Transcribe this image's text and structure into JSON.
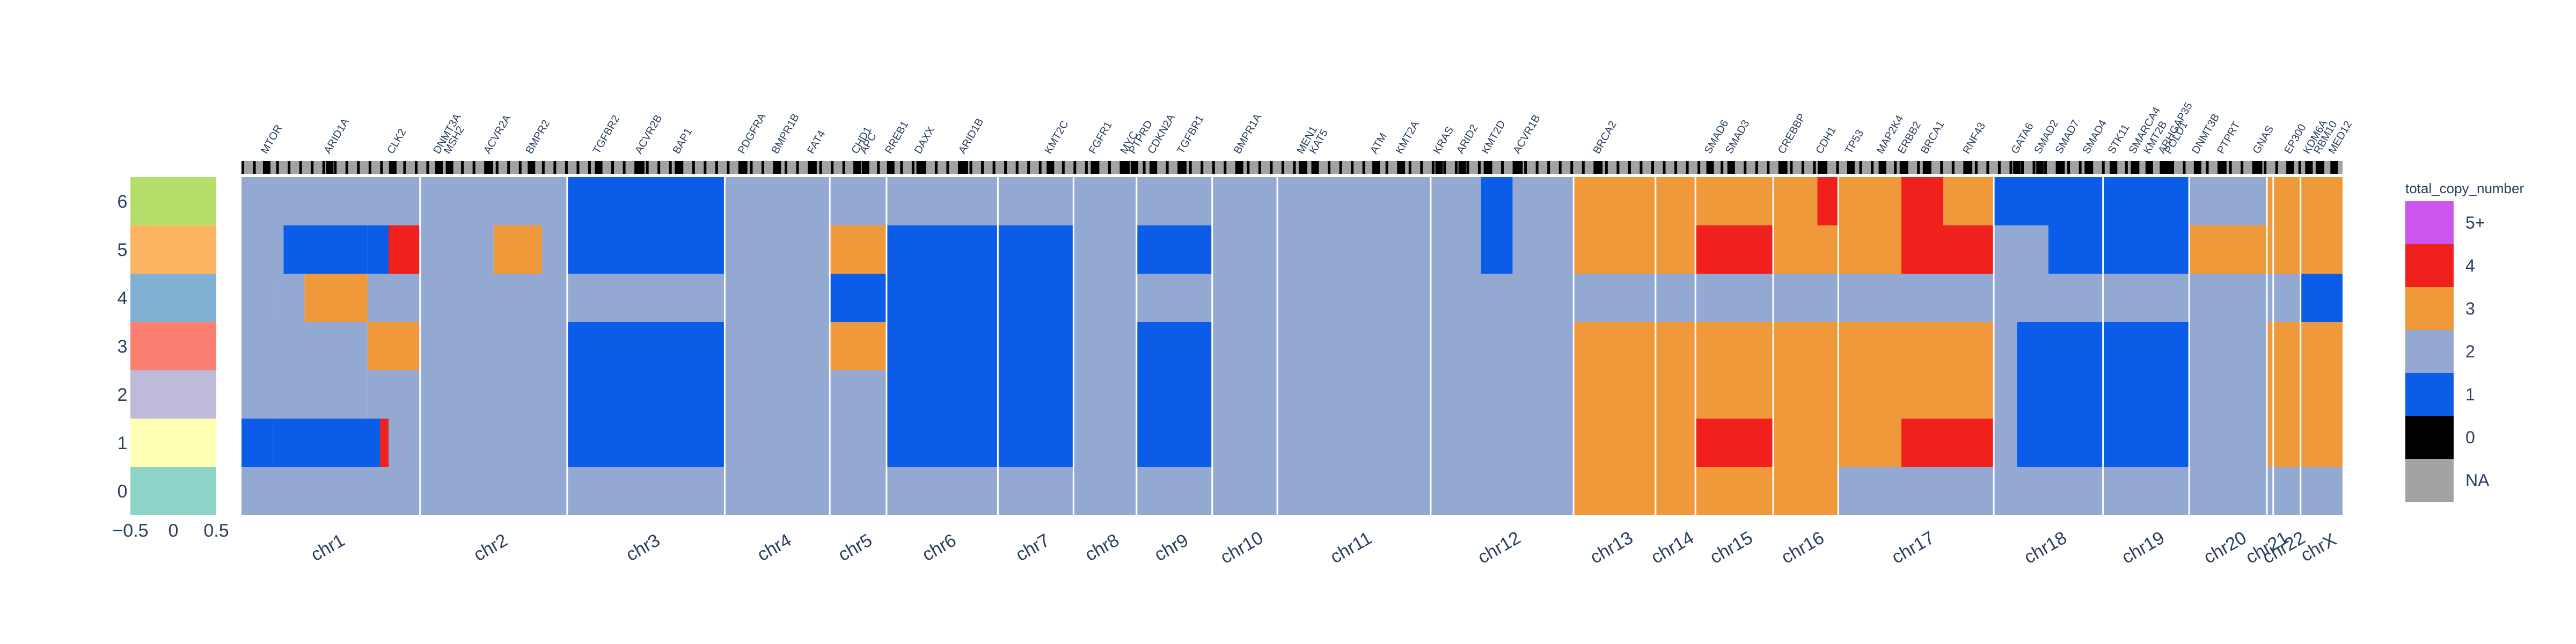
{
  "chart_data": {
    "type": "heatmap",
    "legend_title": "total_copy_number",
    "legend": [
      {
        "label": "5+",
        "color": "#cc55ee"
      },
      {
        "label": "4",
        "color": "#f0201c"
      },
      {
        "label": "3",
        "color": "#f0993a"
      },
      {
        "label": "2",
        "color": "#94a9d2"
      },
      {
        "label": "1",
        "color": "#0b5de9"
      },
      {
        "label": "0",
        "color": "#000000"
      },
      {
        "label": "NA",
        "color": "#a3a3a3"
      }
    ],
    "row_labels": [
      "6",
      "5",
      "4",
      "3",
      "2",
      "1",
      "0"
    ],
    "cluster_colors": [
      "#b5df6a",
      "#fdb462",
      "#80b1d3",
      "#fb8072",
      "#bebada",
      "#ffffb3",
      "#8dd3c7"
    ],
    "cluster_axis": {
      "ticks": [
        "−0.5",
        "0",
        "0.5"
      ],
      "range": [
        -0.5,
        0.5
      ]
    },
    "chromosomes": [
      {
        "name": "chr1",
        "start": 0,
        "end": 8.5
      },
      {
        "name": "chr2",
        "start": 8.5,
        "end": 15.5
      },
      {
        "name": "chr3",
        "start": 15.5,
        "end": 23
      },
      {
        "name": "chr4",
        "start": 23,
        "end": 28
      },
      {
        "name": "chr5",
        "start": 28,
        "end": 30.7
      },
      {
        "name": "chr6",
        "start": 30.7,
        "end": 36
      },
      {
        "name": "chr7",
        "start": 36,
        "end": 39.6
      },
      {
        "name": "chr8",
        "start": 39.6,
        "end": 42.6
      },
      {
        "name": "chr9",
        "start": 42.6,
        "end": 46.2
      },
      {
        "name": "chr10",
        "start": 46.2,
        "end": 49.3
      },
      {
        "name": "chr11",
        "start": 49.3,
        "end": 56.6
      },
      {
        "name": "chr12",
        "start": 56.6,
        "end": 63.4
      },
      {
        "name": "chr13",
        "start": 63.4,
        "end": 67.3
      },
      {
        "name": "chr14",
        "start": 67.3,
        "end": 69.2
      },
      {
        "name": "chr15",
        "start": 69.2,
        "end": 72.9
      },
      {
        "name": "chr16",
        "start": 72.9,
        "end": 76
      },
      {
        "name": "chr17",
        "start": 76,
        "end": 83.4
      },
      {
        "name": "chr18",
        "start": 83.4,
        "end": 88.6
      },
      {
        "name": "chr19",
        "start": 88.6,
        "end": 92.7
      },
      {
        "name": "chr20",
        "start": 92.7,
        "end": 96.4
      },
      {
        "name": "chr21",
        "start": 96.4,
        "end": 96.7
      },
      {
        "name": "chr22",
        "start": 96.7,
        "end": 98
      },
      {
        "name": "chrX",
        "start": 98,
        "end": 100
      }
    ],
    "genes": [
      {
        "name": "MTOR",
        "pos": 1.2
      },
      {
        "name": "ARID1A",
        "pos": 4.2
      },
      {
        "name": "CLK2",
        "pos": 7.2
      },
      {
        "name": "DNMT3A",
        "pos": 9.4
      },
      {
        "name": "MSH2",
        "pos": 9.9
      },
      {
        "name": "ACVR2A",
        "pos": 11.8
      },
      {
        "name": "BMPR2",
        "pos": 13.8
      },
      {
        "name": "TGFBR2",
        "pos": 17.0
      },
      {
        "name": "ACVR2B",
        "pos": 19.0
      },
      {
        "name": "BAP1",
        "pos": 20.8
      },
      {
        "name": "PDGFRA",
        "pos": 23.9
      },
      {
        "name": "BMPR1B",
        "pos": 25.5
      },
      {
        "name": "FAT4",
        "pos": 27.2
      },
      {
        "name": "CHD1",
        "pos": 29.3
      },
      {
        "name": "APC",
        "pos": 29.7
      },
      {
        "name": "RREB1",
        "pos": 30.9
      },
      {
        "name": "DAXX",
        "pos": 32.3
      },
      {
        "name": "ARID1B",
        "pos": 34.4
      },
      {
        "name": "KMT2C",
        "pos": 38.5
      },
      {
        "name": "FGFR1",
        "pos": 40.6
      },
      {
        "name": "MYC",
        "pos": 42.1
      },
      {
        "name": "PTPRD",
        "pos": 42.5
      },
      {
        "name": "CDKN2A",
        "pos": 43.4
      },
      {
        "name": "TGFBR1",
        "pos": 44.8
      },
      {
        "name": "BMPR1A",
        "pos": 47.5
      },
      {
        "name": "MEN1",
        "pos": 50.5
      },
      {
        "name": "KAT5",
        "pos": 51.1
      },
      {
        "name": "ATM",
        "pos": 54.0
      },
      {
        "name": "KMT2A",
        "pos": 55.2
      },
      {
        "name": "KRAS",
        "pos": 57.0
      },
      {
        "name": "ARID2",
        "pos": 58.1
      },
      {
        "name": "KMT2D",
        "pos": 59.3
      },
      {
        "name": "ACVR1B",
        "pos": 60.8
      },
      {
        "name": "BRCA2",
        "pos": 64.6
      },
      {
        "name": "SMAD6",
        "pos": 69.9
      },
      {
        "name": "SMAD3",
        "pos": 70.9
      },
      {
        "name": "CREBBP",
        "pos": 73.4
      },
      {
        "name": "CDH1",
        "pos": 75.2
      },
      {
        "name": "TP53",
        "pos": 76.6
      },
      {
        "name": "MAP2K4",
        "pos": 78.1
      },
      {
        "name": "ERBB2",
        "pos": 79.1
      },
      {
        "name": "BRCA1",
        "pos": 80.2
      },
      {
        "name": "RNF43",
        "pos": 82.2
      },
      {
        "name": "GATA6",
        "pos": 84.5
      },
      {
        "name": "SMAD2",
        "pos": 85.6
      },
      {
        "name": "SMAD7",
        "pos": 86.6
      },
      {
        "name": "SMAD4",
        "pos": 87.9
      },
      {
        "name": "STK11",
        "pos": 89.1
      },
      {
        "name": "SMARCA4",
        "pos": 90.1
      },
      {
        "name": "KMT2B",
        "pos": 90.8
      },
      {
        "name": "ARHGAP35",
        "pos": 91.5
      },
      {
        "name": "POLD1",
        "pos": 91.8
      },
      {
        "name": "DNMT3B",
        "pos": 93.1
      },
      {
        "name": "PTPRT",
        "pos": 94.3
      },
      {
        "name": "GNAS",
        "pos": 96.0
      },
      {
        "name": "EP300",
        "pos": 97.5
      },
      {
        "name": "KDM6A",
        "pos": 98.4
      },
      {
        "name": "RBM10",
        "pos": 98.9
      },
      {
        "name": "MED12",
        "pos": 99.6
      }
    ],
    "values": [
      [
        [
          0,
          15.5,
          2
        ],
        [
          15.5,
          23,
          1
        ],
        [
          23,
          56.6,
          2
        ],
        [
          56.6,
          59,
          2
        ],
        [
          59,
          60.5,
          1
        ],
        [
          60.5,
          63.4,
          2
        ],
        [
          63.4,
          72.9,
          3
        ],
        [
          72.9,
          75,
          3
        ],
        [
          75,
          76,
          4
        ],
        [
          76,
          79,
          3
        ],
        [
          79,
          81,
          4
        ],
        [
          81,
          83.4,
          3
        ],
        [
          83.4,
          88.6,
          1
        ],
        [
          88.6,
          92.7,
          1
        ],
        [
          92.7,
          96.4,
          2
        ],
        [
          96.4,
          100,
          3
        ]
      ],
      [
        [
          0,
          2,
          2
        ],
        [
          2,
          6,
          1
        ],
        [
          6,
          7,
          1
        ],
        [
          7,
          8.5,
          4
        ],
        [
          8.5,
          12,
          2
        ],
        [
          12,
          14.3,
          3
        ],
        [
          14.3,
          15.5,
          2
        ],
        [
          15.5,
          23,
          1
        ],
        [
          23,
          28,
          2
        ],
        [
          28,
          30.7,
          3
        ],
        [
          30.7,
          36,
          1
        ],
        [
          36,
          39.6,
          1
        ],
        [
          39.6,
          42.6,
          2
        ],
        [
          42.6,
          46.2,
          1
        ],
        [
          46.2,
          49.3,
          2
        ],
        [
          49.3,
          56.6,
          2
        ],
        [
          56.6,
          59,
          2
        ],
        [
          59,
          60.5,
          1
        ],
        [
          60.5,
          63.4,
          2
        ],
        [
          63.4,
          69.2,
          3
        ],
        [
          69.2,
          72.9,
          4
        ],
        [
          72.9,
          76,
          3
        ],
        [
          76,
          79,
          3
        ],
        [
          79,
          83.4,
          4
        ],
        [
          83.4,
          86,
          2
        ],
        [
          86,
          88.6,
          1
        ],
        [
          88.6,
          92.7,
          1
        ],
        [
          92.7,
          96.4,
          3
        ],
        [
          96.4,
          100,
          3
        ]
      ],
      [
        [
          0,
          1.5,
          2
        ],
        [
          1.5,
          3,
          2
        ],
        [
          3,
          6,
          3
        ],
        [
          6,
          8.5,
          2
        ],
        [
          8.5,
          15.5,
          2
        ],
        [
          15.5,
          23,
          2
        ],
        [
          23,
          28,
          2
        ],
        [
          28,
          30.7,
          1
        ],
        [
          30.7,
          36,
          1
        ],
        [
          36,
          39.6,
          1
        ],
        [
          39.6,
          42.6,
          2
        ],
        [
          42.6,
          46.2,
          2
        ],
        [
          46.2,
          49.3,
          2
        ],
        [
          49.3,
          56.6,
          2
        ],
        [
          56.6,
          63.4,
          2
        ],
        [
          63.4,
          69.2,
          2
        ],
        [
          69.2,
          72.9,
          2
        ],
        [
          72.9,
          76,
          2
        ],
        [
          76,
          83.4,
          2
        ],
        [
          83.4,
          88.6,
          2
        ],
        [
          88.6,
          92.7,
          2
        ],
        [
          92.7,
          96.4,
          2
        ],
        [
          96.4,
          98,
          2
        ],
        [
          98,
          100,
          1
        ]
      ],
      [
        [
          0,
          6,
          2
        ],
        [
          6,
          8.5,
          3
        ],
        [
          8.5,
          15.5,
          2
        ],
        [
          15.5,
          23,
          1
        ],
        [
          23,
          28,
          2
        ],
        [
          28,
          30.7,
          3
        ],
        [
          30.7,
          36,
          1
        ],
        [
          36,
          39.6,
          1
        ],
        [
          39.6,
          42.6,
          2
        ],
        [
          42.6,
          46.2,
          1
        ],
        [
          46.2,
          49.3,
          2
        ],
        [
          49.3,
          56.6,
          2
        ],
        [
          56.6,
          63.4,
          2
        ],
        [
          63.4,
          69.2,
          3
        ],
        [
          69.2,
          72.9,
          3
        ],
        [
          72.9,
          76,
          3
        ],
        [
          76,
          79,
          3
        ],
        [
          79,
          83.4,
          3
        ],
        [
          83.4,
          84.5,
          2
        ],
        [
          84.5,
          88.6,
          1
        ],
        [
          88.6,
          92.7,
          1
        ],
        [
          92.7,
          96.4,
          2
        ],
        [
          96.4,
          100,
          3
        ]
      ],
      [
        [
          0,
          6,
          2
        ],
        [
          6,
          8.5,
          2
        ],
        [
          8.5,
          15.5,
          2
        ],
        [
          15.5,
          23,
          1
        ],
        [
          23,
          28,
          2
        ],
        [
          28,
          30.7,
          2
        ],
        [
          30.7,
          36,
          1
        ],
        [
          36,
          39.6,
          1
        ],
        [
          39.6,
          42.6,
          2
        ],
        [
          42.6,
          46.2,
          1
        ],
        [
          46.2,
          49.3,
          2
        ],
        [
          49.3,
          56.6,
          2
        ],
        [
          56.6,
          63.4,
          2
        ],
        [
          63.4,
          69.2,
          3
        ],
        [
          69.2,
          72.9,
          3
        ],
        [
          72.9,
          76,
          3
        ],
        [
          76,
          79,
          3
        ],
        [
          79,
          83.4,
          3
        ],
        [
          83.4,
          84.5,
          2
        ],
        [
          84.5,
          88.6,
          1
        ],
        [
          88.6,
          92.7,
          1
        ],
        [
          92.7,
          96.4,
          2
        ],
        [
          96.4,
          100,
          3
        ]
      ],
      [
        [
          0,
          1.5,
          1
        ],
        [
          1.5,
          6.6,
          1
        ],
        [
          6.6,
          7,
          4
        ],
        [
          7,
          8.5,
          2
        ],
        [
          8.5,
          15.5,
          2
        ],
        [
          15.5,
          23,
          1
        ],
        [
          23,
          28,
          2
        ],
        [
          28,
          30.7,
          2
        ],
        [
          30.7,
          36,
          1
        ],
        [
          36,
          39.6,
          1
        ],
        [
          39.6,
          42.6,
          2
        ],
        [
          42.6,
          46.2,
          1
        ],
        [
          46.2,
          49.3,
          2
        ],
        [
          49.3,
          56.6,
          2
        ],
        [
          56.6,
          63.4,
          2
        ],
        [
          63.4,
          69.2,
          3
        ],
        [
          69.2,
          72.9,
          4
        ],
        [
          72.9,
          76,
          3
        ],
        [
          76,
          79,
          3
        ],
        [
          79,
          83.4,
          4
        ],
        [
          83.4,
          84.5,
          2
        ],
        [
          84.5,
          88.6,
          1
        ],
        [
          88.6,
          92.7,
          1
        ],
        [
          92.7,
          96.4,
          2
        ],
        [
          96.4,
          100,
          3
        ]
      ],
      [
        [
          0,
          63.4,
          2
        ],
        [
          63.4,
          69.2,
          3
        ],
        [
          69.2,
          72.9,
          3
        ],
        [
          72.9,
          76,
          3
        ],
        [
          76,
          83.4,
          2
        ],
        [
          83.4,
          100,
          2
        ]
      ]
    ]
  }
}
